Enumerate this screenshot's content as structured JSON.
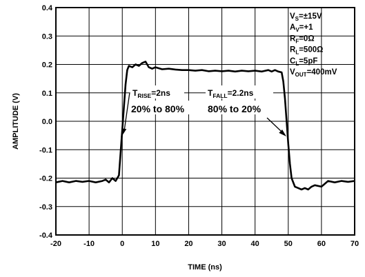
{
  "chart_data": {
    "type": "line",
    "xlabel": "TIME (ns)",
    "ylabel": "AMPLITUDE (V)",
    "xlim": [
      -20,
      70
    ],
    "ylim": [
      -0.4,
      0.4
    ],
    "x_ticks": [
      "-20",
      "-10",
      "0",
      "10",
      "20",
      "30",
      "40",
      "50",
      "60",
      "70"
    ],
    "y_ticks": [
      "0.4",
      "0.3",
      "0.2",
      "0.1",
      "0.0",
      "-0.1",
      "-0.2",
      "-0.3",
      "-0.4"
    ],
    "grid": true,
    "conditions": [
      {
        "main": "V",
        "sub": "S",
        "rest": "=±15V"
      },
      {
        "main": "A",
        "sub": "V",
        "rest": "=+1"
      },
      {
        "main": "R",
        "sub": "F",
        "rest": "=0Ω"
      },
      {
        "main": "R",
        "sub": "L",
        "rest": "=500Ω"
      },
      {
        "main": "C",
        "sub": "L",
        "rest": "=5pF"
      },
      {
        "main": "V",
        "sub": "OUT",
        "rest": "=400mV"
      }
    ],
    "annotations": {
      "rise": {
        "main": "T",
        "sub": "RISE",
        "rest": "=2ns",
        "range": "20% to 80%"
      },
      "fall": {
        "main": "T",
        "sub": "FALL",
        "rest": "=2.2ns",
        "range": "80% to 20%"
      }
    },
    "series": [
      {
        "x": [
          -20,
          -18,
          -16,
          -14,
          -12,
          -10,
          -8,
          -6,
          -5,
          -4,
          -3,
          -2,
          -1,
          0,
          0.5,
          1,
          1.5,
          2,
          3,
          4,
          5,
          6,
          7,
          8,
          9,
          10,
          12,
          14,
          16,
          18,
          20,
          22,
          24,
          26,
          28,
          30,
          32,
          34,
          36,
          38,
          40,
          42,
          44,
          45,
          46,
          47,
          48,
          48.5,
          49,
          49.5,
          50,
          50.5,
          51,
          52,
          53,
          54,
          55,
          56,
          57,
          58,
          60,
          62,
          64,
          66,
          68,
          70
        ],
        "y": [
          -0.215,
          -0.21,
          -0.215,
          -0.21,
          -0.213,
          -0.21,
          -0.215,
          -0.21,
          -0.205,
          -0.215,
          -0.2,
          -0.21,
          -0.19,
          -0.03,
          0.05,
          0.13,
          0.18,
          0.195,
          0.19,
          0.2,
          0.195,
          0.205,
          0.21,
          0.19,
          0.185,
          0.19,
          0.183,
          0.185,
          0.182,
          0.18,
          0.18,
          0.178,
          0.18,
          0.176,
          0.178,
          0.176,
          0.178,
          0.175,
          0.178,
          0.176,
          0.178,
          0.175,
          0.18,
          0.175,
          0.18,
          0.175,
          0.172,
          0.14,
          0.08,
          0.0,
          -0.08,
          -0.15,
          -0.2,
          -0.23,
          -0.235,
          -0.24,
          -0.235,
          -0.24,
          -0.23,
          -0.225,
          -0.23,
          -0.21,
          -0.215,
          -0.21,
          -0.213,
          -0.21
        ]
      }
    ]
  }
}
